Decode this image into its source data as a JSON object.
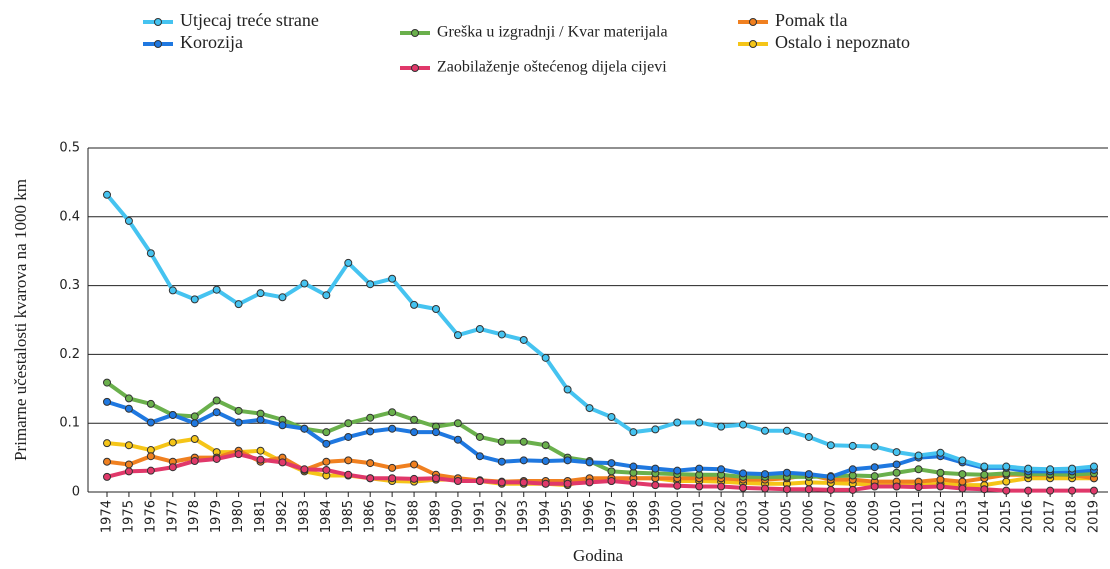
{
  "chart_data": {
    "type": "line",
    "x_label": "Godina",
    "y_label": "Primarne učestalosti kvarova na 1000 km",
    "categories": [
      "1974",
      "1975",
      "1976",
      "1977",
      "1978",
      "1979",
      "1980",
      "1981",
      "1982",
      "1983",
      "1984",
      "1985",
      "1986",
      "1987",
      "1988",
      "1989",
      "1990",
      "1991",
      "1992",
      "1993",
      "1994",
      "1995",
      "1996",
      "1997",
      "1998",
      "1999",
      "2000",
      "2001",
      "2002",
      "2003",
      "2004",
      "2005",
      "2006",
      "2007",
      "2008",
      "2009",
      "2010",
      "2011",
      "2012",
      "2013",
      "2014",
      "2015",
      "2016",
      "2017",
      "2018",
      "2019"
    ],
    "ylim": [
      0,
      0.5
    ],
    "yticks": [
      0,
      0.1,
      0.2,
      0.3,
      0.4,
      0.5
    ],
    "grid": true,
    "legend": "top",
    "series": [
      {
        "name": "Utjecaj treće strane",
        "color": "#45c3f0",
        "values": [
          0.432,
          0.394,
          0.347,
          0.293,
          0.28,
          0.294,
          0.273,
          0.289,
          0.283,
          0.303,
          0.286,
          0.333,
          0.302,
          0.31,
          0.272,
          0.266,
          0.228,
          0.237,
          0.229,
          0.221,
          0.195,
          0.149,
          0.122,
          0.109,
          0.087,
          0.091,
          0.101,
          0.101,
          0.095,
          0.098,
          0.089,
          0.089,
          0.08,
          0.068,
          0.067,
          0.066,
          0.058,
          0.053,
          0.057,
          0.046,
          0.037,
          0.037,
          0.034,
          0.033,
          0.034,
          0.037
        ]
      },
      {
        "name": "Korozija",
        "color": "#1f78e0",
        "values": [
          0.131,
          0.121,
          0.101,
          0.112,
          0.1,
          0.116,
          0.101,
          0.105,
          0.097,
          0.092,
          0.07,
          0.08,
          0.088,
          0.092,
          0.087,
          0.087,
          0.076,
          0.052,
          0.044,
          0.046,
          0.045,
          0.046,
          0.043,
          0.042,
          0.037,
          0.034,
          0.031,
          0.034,
          0.033,
          0.027,
          0.026,
          0.028,
          0.026,
          0.022,
          0.033,
          0.036,
          0.04,
          0.05,
          0.052,
          0.043,
          0.035,
          0.035,
          0.03,
          0.03,
          0.03,
          0.032
        ]
      },
      {
        "name": "Greška u izgradnji / Kvar materijala",
        "color": "#6ab04c",
        "values": [
          0.159,
          0.136,
          0.128,
          0.112,
          0.11,
          0.133,
          0.118,
          0.114,
          0.105,
          0.092,
          0.087,
          0.1,
          0.108,
          0.116,
          0.105,
          0.095,
          0.1,
          0.08,
          0.073,
          0.073,
          0.068,
          0.05,
          0.045,
          0.03,
          0.028,
          0.027,
          0.026,
          0.025,
          0.025,
          0.022,
          0.022,
          0.022,
          0.022,
          0.023,
          0.024,
          0.023,
          0.028,
          0.033,
          0.028,
          0.026,
          0.025,
          0.027,
          0.026,
          0.026,
          0.025,
          0.027
        ]
      },
      {
        "name": "Zaobilaženje oštećenog dijela cijevi",
        "color": "#e0386a",
        "values": [
          0.022,
          0.03,
          0.031,
          0.036,
          0.045,
          0.048,
          0.055,
          0.047,
          0.043,
          0.033,
          0.032,
          0.025,
          0.02,
          0.02,
          0.019,
          0.02,
          0.016,
          0.016,
          0.014,
          0.014,
          0.012,
          0.012,
          0.014,
          0.016,
          0.013,
          0.01,
          0.009,
          0.008,
          0.008,
          0.006,
          0.005,
          0.004,
          0.004,
          0.003,
          0.003,
          0.008,
          0.008,
          0.007,
          0.008,
          0.005,
          0.004,
          0.002,
          0.002,
          0.002,
          0.002,
          0.002
        ]
      },
      {
        "name": "Pomak tla",
        "color": "#f08020",
        "values": [
          0.044,
          0.04,
          0.052,
          0.044,
          0.05,
          0.05,
          0.06,
          0.044,
          0.05,
          0.032,
          0.044,
          0.046,
          0.042,
          0.035,
          0.04,
          0.025,
          0.02,
          0.017,
          0.015,
          0.016,
          0.016,
          0.016,
          0.02,
          0.02,
          0.02,
          0.02,
          0.02,
          0.02,
          0.02,
          0.018,
          0.018,
          0.02,
          0.025,
          0.018,
          0.018,
          0.015,
          0.015,
          0.015,
          0.018,
          0.015,
          0.02,
          0.025,
          0.025,
          0.025,
          0.025,
          0.02
        ]
      },
      {
        "name": "Ostalo i nepoznato",
        "color": "#f5c518",
        "values": [
          0.071,
          0.068,
          0.061,
          0.072,
          0.077,
          0.058,
          0.058,
          0.06,
          0.044,
          0.03,
          0.024,
          0.024,
          0.02,
          0.016,
          0.015,
          0.018,
          0.018,
          0.016,
          0.012,
          0.012,
          0.012,
          0.01,
          0.018,
          0.016,
          0.02,
          0.02,
          0.016,
          0.016,
          0.015,
          0.013,
          0.012,
          0.012,
          0.014,
          0.013,
          0.012,
          0.011,
          0.01,
          0.01,
          0.012,
          0.01,
          0.01,
          0.015,
          0.02,
          0.02,
          0.02,
          0.02
        ]
      }
    ]
  }
}
